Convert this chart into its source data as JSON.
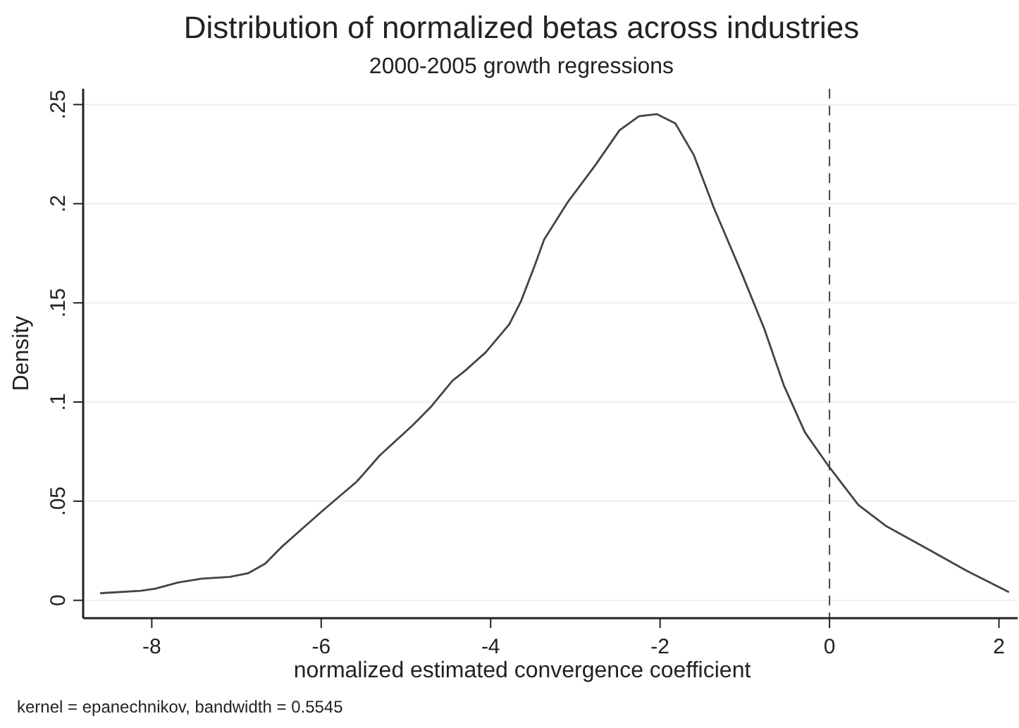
{
  "chart_data": {
    "type": "line",
    "title": "Distribution of normalized betas across industries",
    "subtitle": "2000-2005 growth regressions",
    "xlabel": "normalized estimated convergence coefficient",
    "ylabel": "Density",
    "annotations": [
      "kernel = epanechnikov, bandwidth = 0.5545"
    ],
    "x": [
      -8.6,
      -8.13,
      -7.96,
      -7.69,
      -7.41,
      -7.08,
      -6.86,
      -6.66,
      -6.47,
      -6.19,
      -5.97,
      -5.58,
      -5.31,
      -4.92,
      -4.7,
      -4.45,
      -4.31,
      -4.06,
      -3.78,
      -3.64,
      -3.48,
      -3.37,
      -3.09,
      -2.76,
      -2.48,
      -2.25,
      -2.04,
      -1.82,
      -1.6,
      -1.37,
      -1.04,
      -0.77,
      -0.54,
      -0.29,
      -0.02,
      0.34,
      0.67,
      1.17,
      1.62,
      2.11
    ],
    "series": [
      {
        "color": "#444444",
        "values": [
          0.0036,
          0.0048,
          0.0059,
          0.009,
          0.0109,
          0.0118,
          0.0137,
          0.0185,
          0.0268,
          0.0374,
          0.0457,
          0.0599,
          0.073,
          0.0883,
          0.0978,
          0.1108,
          0.1155,
          0.125,
          0.1392,
          0.151,
          0.1688,
          0.1818,
          0.2008,
          0.2197,
          0.237,
          0.2441,
          0.2452,
          0.2405,
          0.2244,
          0.1984,
          0.1653,
          0.1369,
          0.1085,
          0.0847,
          0.0682,
          0.0481,
          0.0374,
          0.0256,
          0.0149,
          0.0043
        ]
      }
    ],
    "xlim": [
      -8.81,
      2.22
    ],
    "xticks": [
      -8,
      -6,
      -4,
      -2,
      0,
      2
    ],
    "ylim": [
      -0.009,
      0.258
    ],
    "yticks": [
      {
        "value": 0,
        "label": "0"
      },
      {
        "value": 0.05,
        "label": ".05"
      },
      {
        "value": 0.1,
        "label": ".1"
      },
      {
        "value": 0.15,
        "label": ".15"
      },
      {
        "value": 0.2,
        "label": ".2"
      },
      {
        "value": 0.25,
        "label": ".25"
      }
    ],
    "grid": "y",
    "line_style": "solid",
    "marker": "none",
    "ref_lines": [
      {
        "axis": "x",
        "value": 0,
        "line_style": "dashed",
        "color": "#444444"
      }
    ]
  }
}
